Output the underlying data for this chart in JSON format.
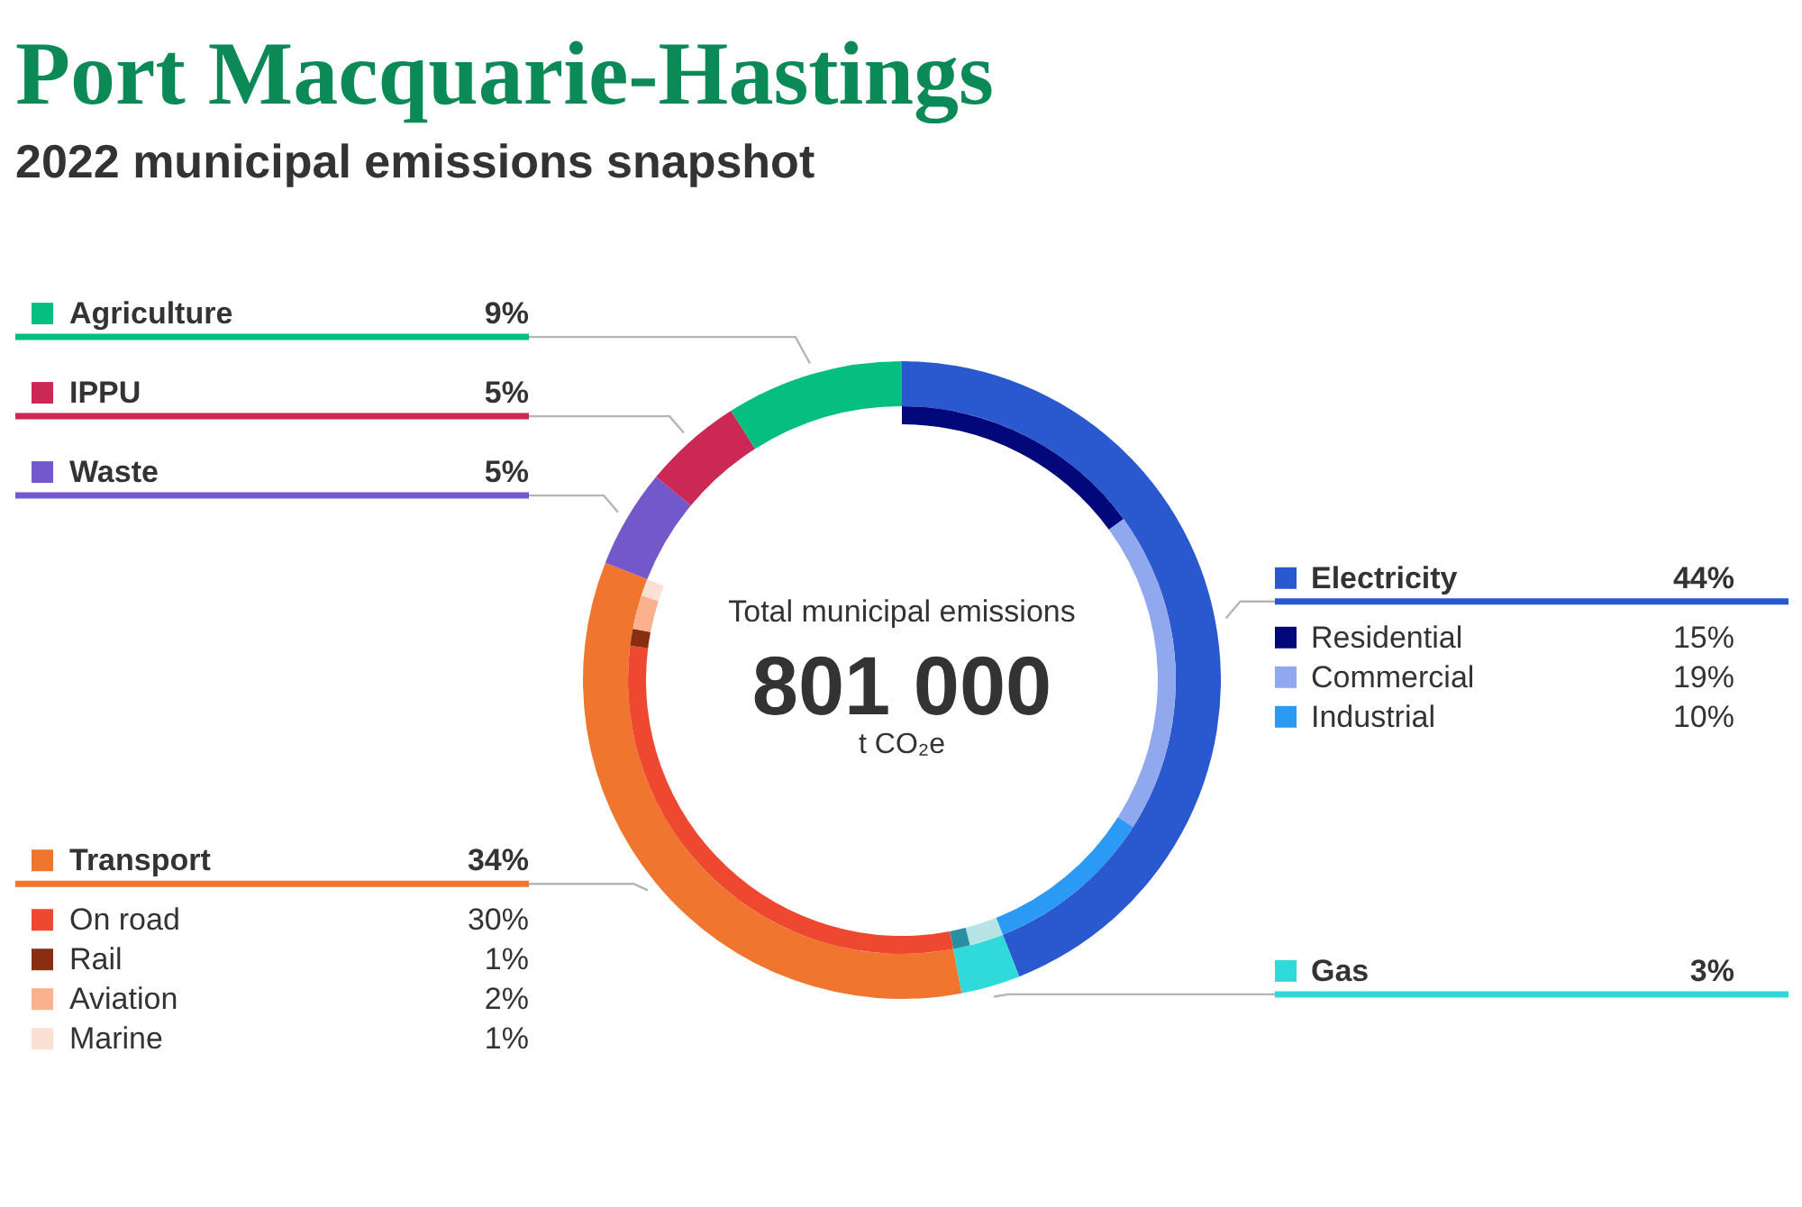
{
  "chart_data": {
    "type": "donut",
    "title": "Port Macquarie-Hastings",
    "subtitle": "2022 municipal emissions snapshot",
    "categories": [
      "Electricity",
      "Residential",
      "Commercial",
      "Industrial",
      "Gas",
      null,
      null,
      "Transport",
      "On road",
      "Rail",
      "Aviation",
      "Marine",
      "Waste",
      "IPPU",
      "Agriculture"
    ],
    "series": [
      {
        "values": [
          44,
          null,
          null,
          null,
          3,
          null,
          null,
          34,
          null,
          null,
          null,
          null,
          5,
          5,
          9
        ],
        "colors": [
          "#2a58cf",
          null,
          null,
          null,
          "#30dada",
          null,
          null,
          "#f07630",
          null,
          null,
          null,
          null,
          "#7358cc",
          "#cc2855",
          "#05bf80"
        ],
        "value_labels": [
          "44%",
          null,
          null,
          null,
          "3%",
          null,
          null,
          "34%",
          null,
          null,
          null,
          null,
          "5%",
          "5%",
          "9%"
        ]
      },
      {
        "values": [
          null,
          15,
          19,
          10,
          null,
          2,
          1,
          null,
          30,
          1,
          2,
          1,
          null,
          null,
          null
        ],
        "colors": [
          null,
          "#02077a",
          "#8fa8ee",
          "#2a9af5",
          null,
          "#b6e3e3",
          "#2a8fa3",
          null,
          "#ee4830",
          "#8a2e12",
          "#fbb08e",
          "#fde0d5",
          null,
          null,
          null
        ],
        "value_labels": [
          null,
          "15%",
          "19%",
          "10%",
          null,
          null,
          null,
          null,
          "30%",
          "1%",
          "2%",
          "1%",
          null,
          null,
          null
        ]
      }
    ],
    "legend": "left",
    "annotations": [
      "Total municipal emissions",
      "801 000",
      "t CO₂e"
    ]
  }
}
